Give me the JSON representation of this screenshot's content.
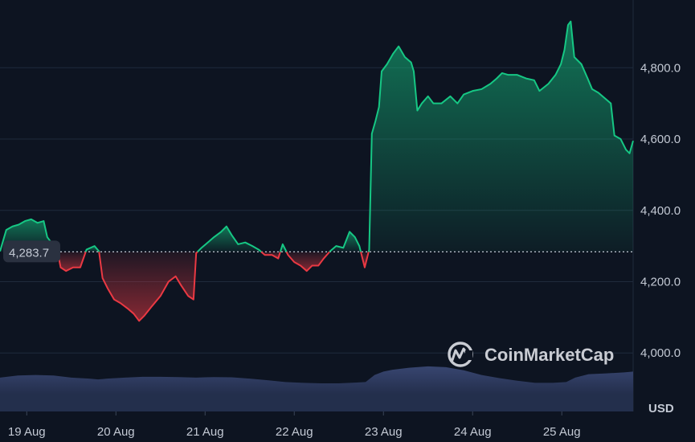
{
  "chart_data": {
    "type": "area",
    "currency": "USD",
    "baseline_value": 4283.7,
    "baseline_label": "4,283.7",
    "y_ticks": [
      {
        "value": 4000,
        "label": "4,000.0"
      },
      {
        "value": 4200,
        "label": "4,200.0"
      },
      {
        "value": 4400,
        "label": "4,400.0"
      },
      {
        "value": 4600,
        "label": "4,600.0"
      },
      {
        "value": 4800,
        "label": "4,800.0"
      }
    ],
    "ylim": [
      3836,
      4990
    ],
    "xlim": [
      0,
      7.1
    ],
    "x_ticks": [
      {
        "x": 0.3,
        "label": "19 Aug"
      },
      {
        "x": 1.3,
        "label": "20 Aug"
      },
      {
        "x": 2.3,
        "label": "21 Aug"
      },
      {
        "x": 3.3,
        "label": "22 Aug"
      },
      {
        "x": 4.3,
        "label": "23 Aug"
      },
      {
        "x": 5.3,
        "label": "24 Aug"
      },
      {
        "x": 6.3,
        "label": "25 Aug"
      }
    ],
    "price_series": [
      [
        0.0,
        4285
      ],
      [
        0.07,
        4345
      ],
      [
        0.14,
        4355
      ],
      [
        0.21,
        4360
      ],
      [
        0.28,
        4370
      ],
      [
        0.35,
        4375
      ],
      [
        0.42,
        4365
      ],
      [
        0.49,
        4370
      ],
      [
        0.53,
        4325
      ],
      [
        0.59,
        4305
      ],
      [
        0.63,
        4305
      ],
      [
        0.68,
        4240
      ],
      [
        0.74,
        4230
      ],
      [
        0.82,
        4240
      ],
      [
        0.9,
        4240
      ],
      [
        0.97,
        4290
      ],
      [
        1.06,
        4300
      ],
      [
        1.11,
        4285
      ],
      [
        1.15,
        4210
      ],
      [
        1.21,
        4180
      ],
      [
        1.28,
        4150
      ],
      [
        1.35,
        4140
      ],
      [
        1.43,
        4125
      ],
      [
        1.5,
        4110
      ],
      [
        1.56,
        4090
      ],
      [
        1.62,
        4105
      ],
      [
        1.7,
        4130
      ],
      [
        1.8,
        4160
      ],
      [
        1.89,
        4200
      ],
      [
        1.97,
        4215
      ],
      [
        2.03,
        4190
      ],
      [
        2.11,
        4160
      ],
      [
        2.17,
        4150
      ],
      [
        2.2,
        4280
      ],
      [
        2.26,
        4295
      ],
      [
        2.33,
        4310
      ],
      [
        2.4,
        4325
      ],
      [
        2.48,
        4340
      ],
      [
        2.54,
        4355
      ],
      [
        2.6,
        4330
      ],
      [
        2.67,
        4305
      ],
      [
        2.75,
        4310
      ],
      [
        2.83,
        4300
      ],
      [
        2.9,
        4290
      ],
      [
        2.97,
        4275
      ],
      [
        3.05,
        4275
      ],
      [
        3.12,
        4265
      ],
      [
        3.17,
        4305
      ],
      [
        3.23,
        4275
      ],
      [
        3.3,
        4255
      ],
      [
        3.37,
        4245
      ],
      [
        3.44,
        4230
      ],
      [
        3.5,
        4245
      ],
      [
        3.57,
        4245
      ],
      [
        3.63,
        4265
      ],
      [
        3.7,
        4285
      ],
      [
        3.77,
        4300
      ],
      [
        3.85,
        4295
      ],
      [
        3.92,
        4340
      ],
      [
        3.98,
        4325
      ],
      [
        4.03,
        4300
      ],
      [
        4.09,
        4240
      ],
      [
        4.14,
        4290
      ],
      [
        4.17,
        4615
      ],
      [
        4.21,
        4650
      ],
      [
        4.25,
        4690
      ],
      [
        4.28,
        4790
      ],
      [
        4.34,
        4810
      ],
      [
        4.41,
        4840
      ],
      [
        4.47,
        4860
      ],
      [
        4.54,
        4830
      ],
      [
        4.61,
        4815
      ],
      [
        4.64,
        4790
      ],
      [
        4.68,
        4680
      ],
      [
        4.73,
        4700
      ],
      [
        4.8,
        4720
      ],
      [
        4.86,
        4700
      ],
      [
        4.95,
        4700
      ],
      [
        5.05,
        4720
      ],
      [
        5.13,
        4700
      ],
      [
        5.2,
        4725
      ],
      [
        5.3,
        4735
      ],
      [
        5.4,
        4740
      ],
      [
        5.5,
        4755
      ],
      [
        5.57,
        4770
      ],
      [
        5.63,
        4785
      ],
      [
        5.7,
        4780
      ],
      [
        5.8,
        4780
      ],
      [
        5.9,
        4770
      ],
      [
        5.99,
        4765
      ],
      [
        6.05,
        4735
      ],
      [
        6.15,
        4755
      ],
      [
        6.23,
        4780
      ],
      [
        6.29,
        4810
      ],
      [
        6.33,
        4850
      ],
      [
        6.37,
        4920
      ],
      [
        6.4,
        4930
      ],
      [
        6.44,
        4830
      ],
      [
        6.52,
        4810
      ],
      [
        6.59,
        4770
      ],
      [
        6.64,
        4740
      ],
      [
        6.71,
        4730
      ],
      [
        6.78,
        4715
      ],
      [
        6.85,
        4700
      ],
      [
        6.89,
        4610
      ],
      [
        6.96,
        4600
      ],
      [
        7.02,
        4570
      ],
      [
        7.06,
        4560
      ],
      [
        7.1,
        4595
      ]
    ],
    "volume_series": [
      [
        0.0,
        0.62
      ],
      [
        0.2,
        0.7
      ],
      [
        0.4,
        0.72
      ],
      [
        0.6,
        0.7
      ],
      [
        0.8,
        0.62
      ],
      [
        1.0,
        0.58
      ],
      [
        1.1,
        0.55
      ],
      [
        1.2,
        0.58
      ],
      [
        1.4,
        0.62
      ],
      [
        1.6,
        0.65
      ],
      [
        1.8,
        0.65
      ],
      [
        2.0,
        0.64
      ],
      [
        2.2,
        0.62
      ],
      [
        2.4,
        0.64
      ],
      [
        2.6,
        0.63
      ],
      [
        2.8,
        0.58
      ],
      [
        3.0,
        0.52
      ],
      [
        3.2,
        0.45
      ],
      [
        3.4,
        0.42
      ],
      [
        3.6,
        0.4
      ],
      [
        3.8,
        0.4
      ],
      [
        4.0,
        0.43
      ],
      [
        4.1,
        0.45
      ],
      [
        4.2,
        0.72
      ],
      [
        4.3,
        0.85
      ],
      [
        4.4,
        0.92
      ],
      [
        4.6,
        1.0
      ],
      [
        4.8,
        1.05
      ],
      [
        5.0,
        1.02
      ],
      [
        5.2,
        0.9
      ],
      [
        5.4,
        0.72
      ],
      [
        5.6,
        0.6
      ],
      [
        5.8,
        0.5
      ],
      [
        6.0,
        0.42
      ],
      [
        6.2,
        0.42
      ],
      [
        6.35,
        0.45
      ],
      [
        6.45,
        0.62
      ],
      [
        6.6,
        0.75
      ],
      [
        6.8,
        0.78
      ],
      [
        7.0,
        0.82
      ],
      [
        7.1,
        0.85
      ]
    ]
  },
  "watermark": {
    "text": "CoinMarketCap"
  },
  "colors": {
    "background": "#0d1421",
    "up": "#16c784",
    "down": "#ea3943",
    "grid": "#1f2a3c",
    "volume": "#2e3a5c",
    "text": "#c3c9d4"
  }
}
